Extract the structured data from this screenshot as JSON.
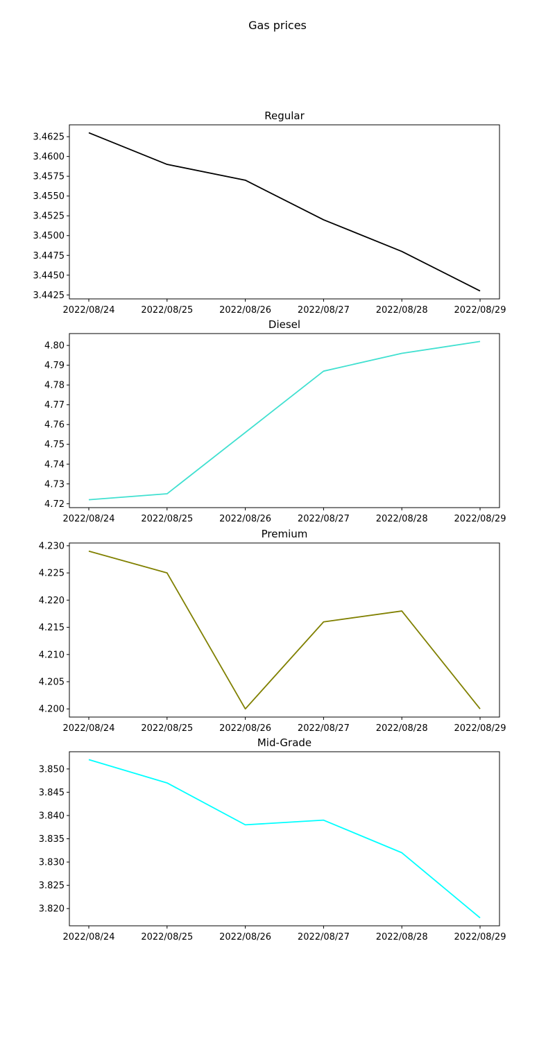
{
  "figure": {
    "title": "Gas prices"
  },
  "chart_data": [
    {
      "type": "line",
      "title": "Regular",
      "color": "#000000",
      "x": [
        "2022/08/24",
        "2022/08/25",
        "2022/08/26",
        "2022/08/27",
        "2022/08/28",
        "2022/08/29"
      ],
      "y": [
        3.463,
        3.459,
        3.457,
        3.452,
        3.448,
        3.443
      ],
      "ylim": [
        3.442,
        3.464
      ],
      "yticks": [
        3.4425,
        3.445,
        3.4475,
        3.45,
        3.4525,
        3.455,
        3.4575,
        3.46,
        3.4625
      ],
      "ytick_labels": [
        "3.4425",
        "3.4450",
        "3.4475",
        "3.4500",
        "3.4525",
        "3.4550",
        "3.4575",
        "3.4600",
        "3.4625"
      ],
      "grid": false
    },
    {
      "type": "line",
      "title": "Diesel",
      "color": "#40e0d0",
      "x": [
        "2022/08/24",
        "2022/08/25",
        "2022/08/26",
        "2022/08/27",
        "2022/08/28",
        "2022/08/29"
      ],
      "y": [
        4.722,
        4.725,
        4.756,
        4.787,
        4.796,
        4.802
      ],
      "ylim": [
        4.718,
        4.806
      ],
      "yticks": [
        4.72,
        4.73,
        4.74,
        4.75,
        4.76,
        4.77,
        4.78,
        4.79,
        4.8
      ],
      "ytick_labels": [
        "4.72",
        "4.73",
        "4.74",
        "4.75",
        "4.76",
        "4.77",
        "4.78",
        "4.79",
        "4.80"
      ],
      "grid": false
    },
    {
      "type": "line",
      "title": "Premium",
      "color": "#808000",
      "x": [
        "2022/08/24",
        "2022/08/25",
        "2022/08/26",
        "2022/08/27",
        "2022/08/28",
        "2022/08/29"
      ],
      "y": [
        4.229,
        4.225,
        4.2,
        4.216,
        4.218,
        4.2
      ],
      "ylim": [
        4.1985,
        4.2305
      ],
      "yticks": [
        4.2,
        4.205,
        4.21,
        4.215,
        4.22,
        4.225,
        4.23
      ],
      "ytick_labels": [
        "4.200",
        "4.205",
        "4.210",
        "4.215",
        "4.220",
        "4.225",
        "4.230"
      ],
      "grid": false
    },
    {
      "type": "line",
      "title": "Mid-Grade",
      "color": "#00ffff",
      "x": [
        "2022/08/24",
        "2022/08/25",
        "2022/08/26",
        "2022/08/27",
        "2022/08/28",
        "2022/08/29"
      ],
      "y": [
        3.852,
        3.847,
        3.838,
        3.839,
        3.832,
        3.818
      ],
      "ylim": [
        3.8163,
        3.8537
      ],
      "yticks": [
        3.82,
        3.825,
        3.83,
        3.835,
        3.84,
        3.845,
        3.85
      ],
      "ytick_labels": [
        "3.820",
        "3.825",
        "3.830",
        "3.835",
        "3.840",
        "3.845",
        "3.850"
      ],
      "grid": false
    }
  ]
}
